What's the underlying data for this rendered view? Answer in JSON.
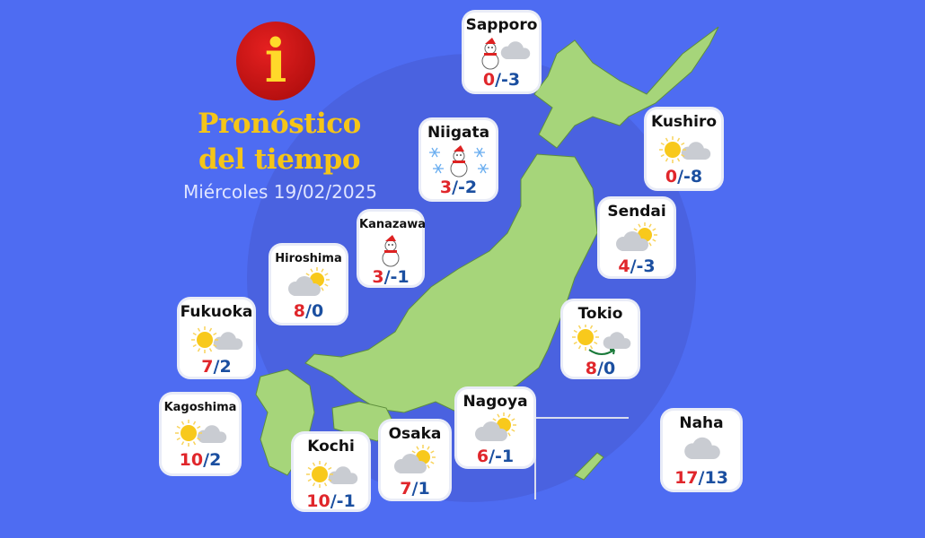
{
  "header": {
    "logo_letter": "i",
    "title_line1": "Pronóstico",
    "title_line2": "del tiempo",
    "date": "Miércoles 19/02/2025"
  },
  "colors": {
    "background": "#4e6cf2",
    "land": "#a6d57a",
    "max_temp": "#e0262b",
    "min_temp": "#1b4fa0",
    "title": "#f5c518"
  },
  "cities": [
    {
      "name": "Sapporo",
      "icon": "snowman-cloud-icon",
      "max": "0",
      "min": "-3"
    },
    {
      "name": "Niigata",
      "icon": "snowman-snowflakes-icon",
      "max": "3",
      "min": "-2"
    },
    {
      "name": "Kushiro",
      "icon": "sun-cloud-icon",
      "max": "0",
      "min": "-8"
    },
    {
      "name": "Kanazawa",
      "icon": "snowman-icon",
      "max": "3",
      "min": "-1"
    },
    {
      "name": "Sendai",
      "icon": "cloud-sun-icon",
      "max": "4",
      "min": "-3"
    },
    {
      "name": "Hiroshima",
      "icon": "cloud-sun-icon",
      "max": "8",
      "min": "0"
    },
    {
      "name": "Fukuoka",
      "icon": "sun-cloud-icon",
      "max": "7",
      "min": "2"
    },
    {
      "name": "Tokio",
      "icon": "sun-to-cloud-icon",
      "max": "8",
      "min": "0"
    },
    {
      "name": "Kagoshima",
      "icon": "sun-cloud-icon",
      "max": "10",
      "min": "2"
    },
    {
      "name": "Nagoya",
      "icon": "cloud-sun-icon",
      "max": "6",
      "min": "-1"
    },
    {
      "name": "Osaka",
      "icon": "cloud-sun-icon",
      "max": "7",
      "min": "1"
    },
    {
      "name": "Kochi",
      "icon": "sun-cloud-icon",
      "max": "10",
      "min": "-1"
    },
    {
      "name": "Naha",
      "icon": "cloud-icon",
      "max": "17",
      "min": "13"
    }
  ]
}
